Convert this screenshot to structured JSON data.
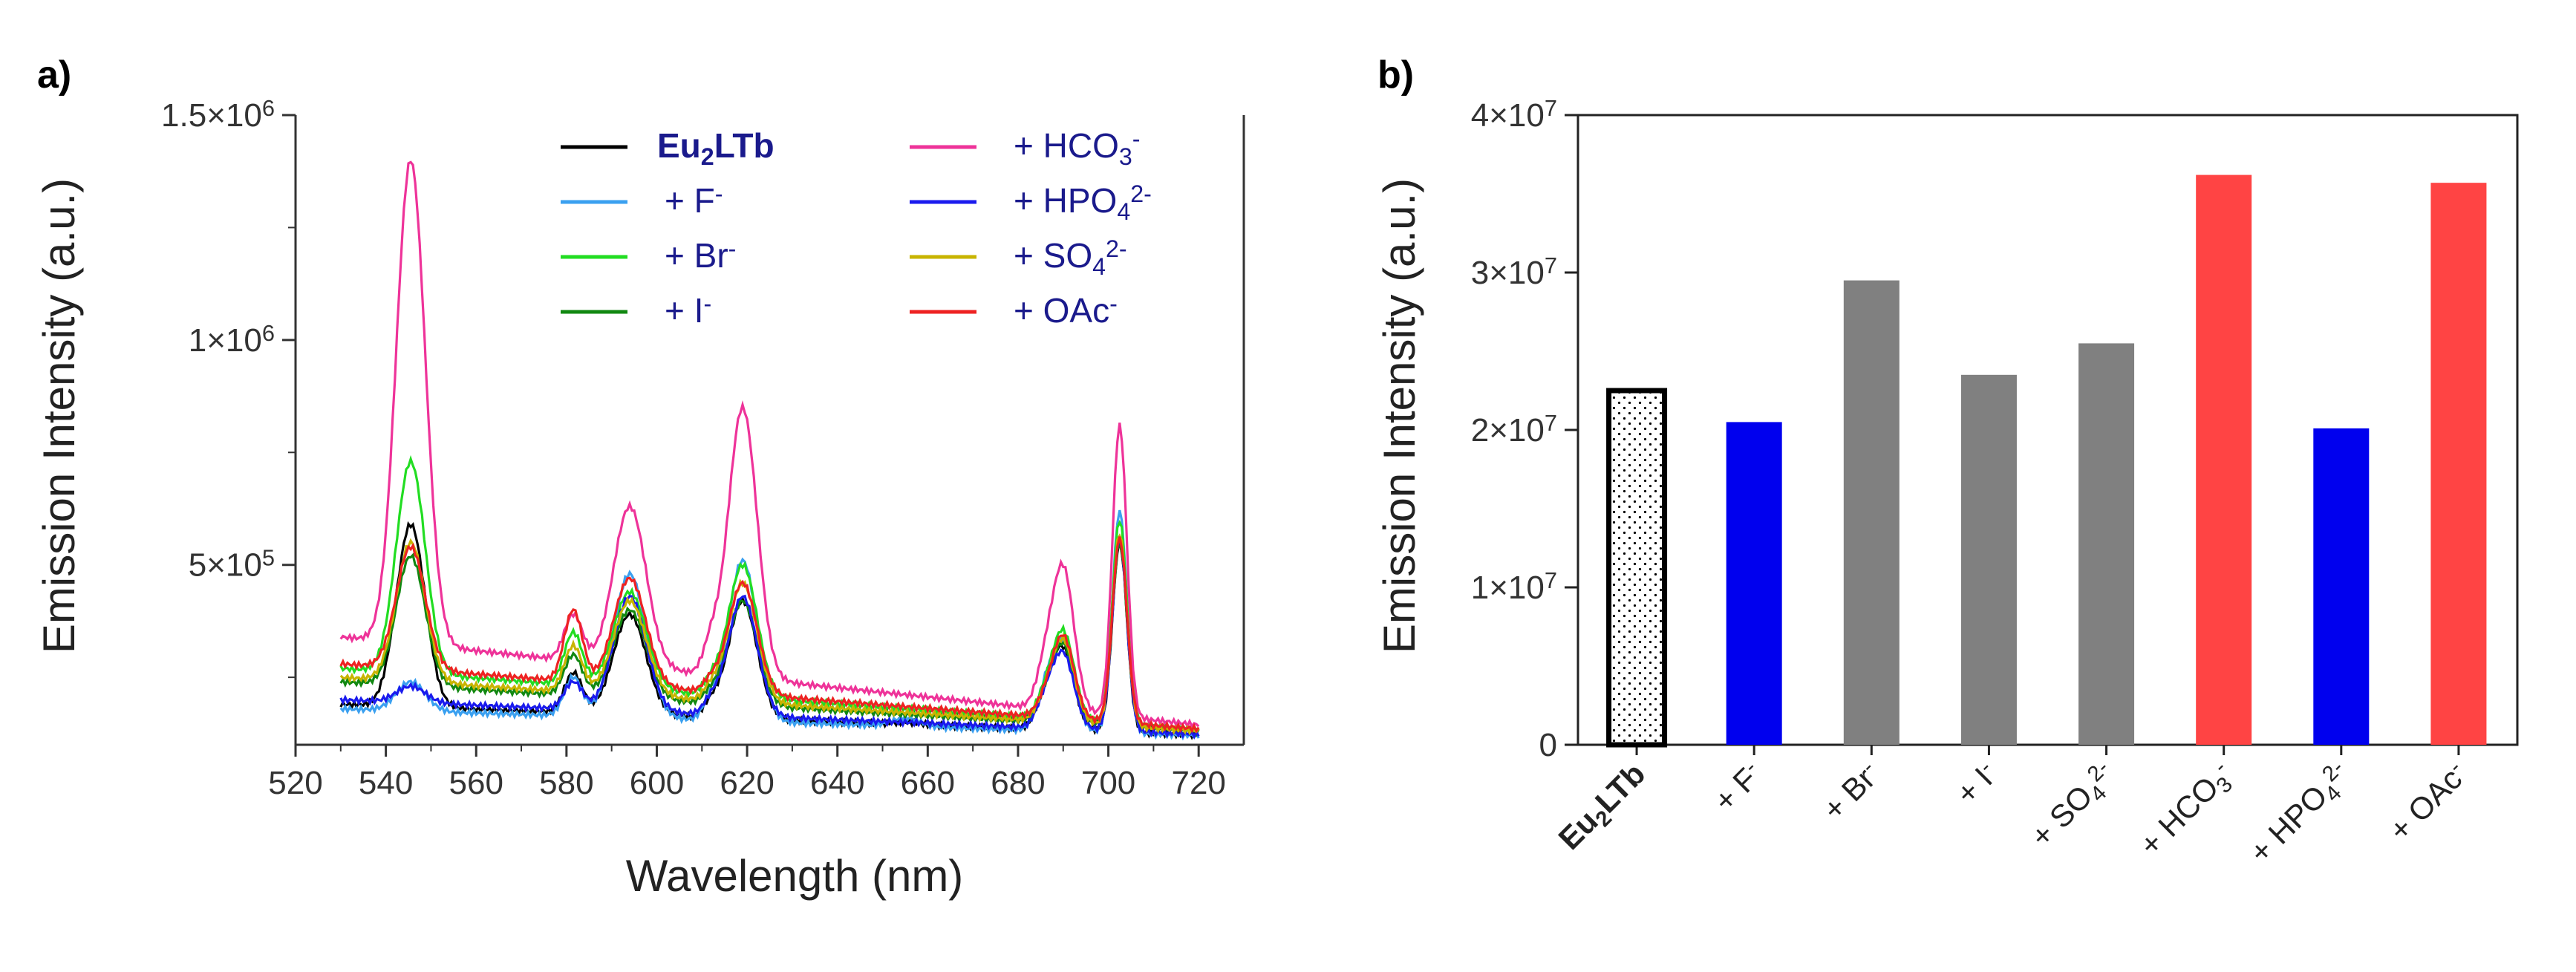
{
  "panels": [
    {
      "label": "a)",
      "chart_data": {
        "type": "line",
        "title": "",
        "xlabel": "Wavelength (nm)",
        "ylabel": "Emission Intensity (a.u.)",
        "xlim": [
          520,
          730
        ],
        "ylim": [
          100000,
          1500000
        ],
        "xticks": [
          520,
          540,
          560,
          580,
          600,
          620,
          640,
          660,
          680,
          700,
          720
        ],
        "yticks": [
          {
            "value": 500000,
            "label": "5×10",
            "exp": "5"
          },
          {
            "value": 1000000,
            "label": "1×10",
            "exp": "6"
          },
          {
            "value": 1500000,
            "label": "1.5×10",
            "exp": "6"
          }
        ],
        "legend_position": "top-right",
        "series": [
          {
            "name": "Eu2LTb",
            "label_main": "Eu",
            "label_sub": "2",
            "label_tail": "LTb",
            "label_sup": "",
            "color": "#000000",
            "base": 190000,
            "peaks": [
              590000,
              260000,
              390000,
              420000,
              150000,
              310000,
              550000
            ]
          },
          {
            "name": "+ F-",
            "label_main": "+ F",
            "label_sub": "",
            "label_tail": "",
            "label_sup": "-",
            "color": "#3aa0f0",
            "base": 180000,
            "peaks": [
              240000,
              250000,
              480000,
              510000,
              160000,
              320000,
              620000
            ]
          },
          {
            "name": "+ Br-",
            "label_main": "+ Br",
            "label_sub": "",
            "label_tail": "",
            "label_sup": "-",
            "color": "#22dd22",
            "base": 270000,
            "peaks": [
              730000,
              350000,
              440000,
              500000,
              180000,
              350000,
              600000
            ]
          },
          {
            "name": "+ I-",
            "label_main": "+ I",
            "label_sub": "",
            "label_tail": "",
            "label_sup": "-",
            "color": "#118811",
            "base": 240000,
            "peaks": [
              520000,
              300000,
              400000,
              420000,
              160000,
              320000,
              550000
            ]
          },
          {
            "name": "+ HCO3-",
            "label_main": "+ HCO",
            "label_sub": "3",
            "label_tail": "",
            "label_sup": "-",
            "color": "#ee3399",
            "base": 340000,
            "peaks": [
              1400000,
              390000,
              630000,
              850000,
              190000,
              490000,
              810000
            ]
          },
          {
            "name": "+ HPO42-",
            "label_main": "+ HPO",
            "label_sub": "4",
            "label_tail": "",
            "label_sup": "2-",
            "color": "#1a1aee",
            "base": 200000,
            "peaks": [
              230000,
              240000,
              430000,
              430000,
              150000,
              300000,
              560000
            ]
          },
          {
            "name": "+ SO42-",
            "label_main": "+ SO",
            "label_sub": "4",
            "label_tail": "",
            "label_sup": "2-",
            "color": "#c8b400",
            "base": 250000,
            "peaks": [
              550000,
              320000,
              420000,
              460000,
              170000,
              330000,
              570000
            ]
          },
          {
            "name": "+ OAc-",
            "label_main": "+ OAc",
            "label_sub": "",
            "label_tail": "",
            "label_sup": "-",
            "color": "#ee2222",
            "base": 280000,
            "peaks": [
              540000,
              400000,
              470000,
              460000,
              170000,
              340000,
              560000
            ]
          }
        ]
      }
    },
    {
      "label": "b)",
      "chart_data": {
        "type": "bar",
        "title": "",
        "xlabel": "",
        "ylabel": "Emission Intensity (a.u.)",
        "ylim": [
          0,
          40000000
        ],
        "yticks": [
          {
            "value": 0,
            "label": "0",
            "exp": ""
          },
          {
            "value": 10000000,
            "label": "1×10",
            "exp": "7"
          },
          {
            "value": 20000000,
            "label": "2×10",
            "exp": "7"
          },
          {
            "value": 30000000,
            "label": "3×10",
            "exp": "7"
          },
          {
            "value": 40000000,
            "label": "4×10",
            "exp": "7"
          }
        ],
        "categories": [
          {
            "name": "Eu2LTb",
            "main": "Eu",
            "sub": "2",
            "tail": "LTb",
            "sup": "",
            "bold": true
          },
          {
            "name": "+ F-",
            "main": "+ F",
            "sub": "",
            "tail": "",
            "sup": "-",
            "bold": false
          },
          {
            "name": "+ Br-",
            "main": "+ Br",
            "sub": "",
            "tail": "",
            "sup": "-",
            "bold": false
          },
          {
            "name": "+ I-",
            "main": "+ I",
            "sub": "",
            "tail": "",
            "sup": "-",
            "bold": false
          },
          {
            "name": "+ SO42-",
            "main": "+ SO",
            "sub": "4",
            "tail": "",
            "sup": "2-",
            "bold": false
          },
          {
            "name": "+ HCO3-",
            "main": "+ HCO",
            "sub": "3",
            "tail": "",
            "sup": "-",
            "bold": false
          },
          {
            "name": "+ HPO42-",
            "main": "+ HPO",
            "sub": "4",
            "tail": "",
            "sup": "2-",
            "bold": false
          },
          {
            "name": "+ OAc-",
            "main": "+ OAc",
            "sub": "",
            "tail": "",
            "sup": "-",
            "bold": false
          }
        ],
        "values": [
          22500000,
          20500000,
          29500000,
          23500000,
          25500000,
          36200000,
          20100000,
          35700000
        ],
        "colors": [
          "dotted",
          "#0000ee",
          "#808080",
          "#808080",
          "#808080",
          "#ff4444",
          "#0000ee",
          "#ff4444"
        ]
      }
    }
  ]
}
